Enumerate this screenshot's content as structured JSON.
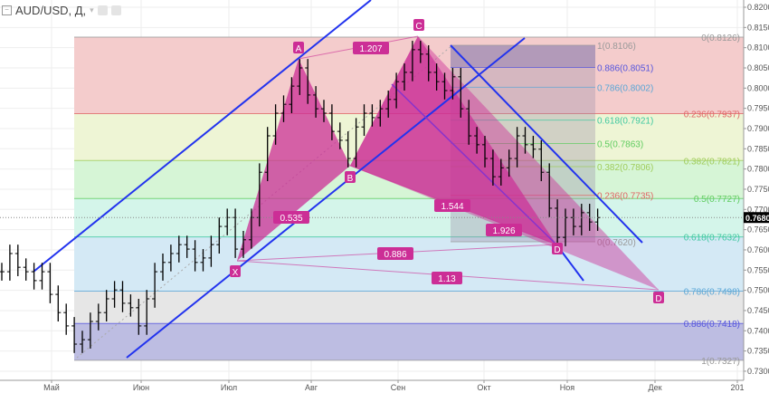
{
  "header": {
    "symbol_title": "AUD/USD, Д,"
  },
  "chart_data": {
    "type": "ohlc",
    "symbol": "AUD/USD",
    "interval": "Д",
    "last_price": "0.7680",
    "ylim": [
      0.728,
      0.822
    ],
    "y_ticks": [
      "0.8200",
      "0.8150",
      "0.8100",
      "0.8050",
      "0.8000",
      "0.7950",
      "0.7900",
      "0.7850",
      "0.7800",
      "0.7750",
      "0.7700",
      "0.7650",
      "0.7600",
      "0.7550",
      "0.7500",
      "0.7450",
      "0.7400",
      "0.7350",
      "0.7300"
    ],
    "x_ticks": [
      "Май",
      "Июн",
      "Июл",
      "Авг",
      "Сен",
      "Окт",
      "Ноя",
      "Дек",
      "201"
    ],
    "grid": true,
    "closes": [
      0.7546,
      0.7591,
      0.7557,
      0.7546,
      0.7524,
      0.7546,
      0.749,
      0.7445,
      0.7412,
      0.7367,
      0.7378,
      0.7423,
      0.7445,
      0.7479,
      0.7501,
      0.7468,
      0.7457,
      0.7412,
      0.7479,
      0.7546,
      0.7569,
      0.7591,
      0.7613,
      0.7602,
      0.7569,
      0.758,
      0.7613,
      0.7658,
      0.768,
      0.7602,
      0.7625,
      0.768,
      0.7792,
      0.7882,
      0.7938,
      0.796,
      0.8005,
      0.805,
      0.7983,
      0.7949,
      0.7938,
      0.7893,
      0.7871,
      0.7826,
      0.7904,
      0.7938,
      0.7927,
      0.7949,
      0.7972,
      0.8016,
      0.8039,
      0.8095,
      0.8084,
      0.8039,
      0.8016,
      0.7994,
      0.8028,
      0.7949,
      0.7882,
      0.786,
      0.7826,
      0.7781,
      0.7803,
      0.7826,
      0.7882,
      0.786,
      0.7849,
      0.7792,
      0.7703,
      0.7631,
      0.768,
      0.7658,
      0.7692,
      0.7669,
      0.768
    ],
    "fib_main": [
      {
        "label": "0(0.8126)",
        "price": 0.8126,
        "color": "#999999",
        "fill": "#f4cccc"
      },
      {
        "label": "0.236(0.7937)",
        "price": 0.7937,
        "color": "#e06666",
        "fill": "#eef5d5"
      },
      {
        "label": "0.382(0.7821)",
        "price": 0.7821,
        "color": "#9fcc5a",
        "fill": "#d6f5d6"
      },
      {
        "label": "0.5(0.7727)",
        "price": 0.7727,
        "color": "#5fcc5f",
        "fill": "#d4f5ea"
      },
      {
        "label": "0.618(0.7632)",
        "price": 0.7632,
        "color": "#3fc8a0",
        "fill": "#d4e9f5"
      },
      {
        "label": "0.786(0.7498)",
        "price": 0.7498,
        "color": "#5aa6d6",
        "fill": "#e6e6e6"
      },
      {
        "label": "0.886(0.7418)",
        "price": 0.7418,
        "color": "#5555dd",
        "fill": "#bdbde2"
      },
      {
        "label": "1(0.7327)",
        "price": 0.7327,
        "color": "#999999",
        "fill": null
      }
    ],
    "fib_inner": [
      {
        "label": "1(0.8106)",
        "price": 0.8106,
        "color": "#999999"
      },
      {
        "label": "0.886(0.8051)",
        "price": 0.8051,
        "color": "#5555dd"
      },
      {
        "label": "0.786(0.8002)",
        "price": 0.8002,
        "color": "#5aa6d6"
      },
      {
        "label": "0.618(0.7921)",
        "price": 0.7921,
        "color": "#3fc8a0"
      },
      {
        "label": "0.5(0.7863)",
        "price": 0.7863,
        "color": "#5fcc5f"
      },
      {
        "label": "0.382(0.7806)",
        "price": 0.7806,
        "color": "#9fcc5a"
      },
      {
        "label": "0.236(0.7735)",
        "price": 0.7735,
        "color": "#e06666"
      },
      {
        "label": "0(0.7620)",
        "price": 0.762,
        "color": "#999999"
      }
    ],
    "pattern_points": [
      {
        "label": "X",
        "price": 0.7566
      },
      {
        "label": "A",
        "price": 0.8066
      },
      {
        "label": "B",
        "price": 0.78
      },
      {
        "label": "C",
        "price": 0.8126
      },
      {
        "label": "D",
        "price": 0.7613
      },
      {
        "label": "D",
        "price": 0.75
      }
    ],
    "pattern_ratios": [
      "1.207",
      "0.535",
      "1.544",
      "1.926",
      "0.886",
      "1.13"
    ],
    "colors": {
      "pattern": "#cc2e96",
      "channel": "#2233ee",
      "purple_line": "#8833cc",
      "bars": "#000000"
    }
  }
}
